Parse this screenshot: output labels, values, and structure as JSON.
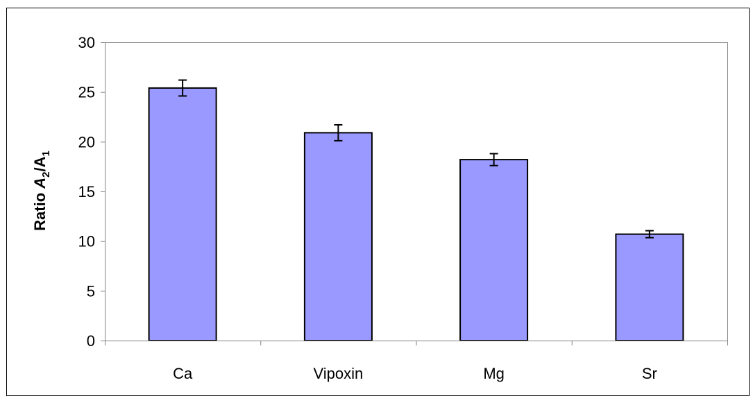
{
  "chart_data": {
    "type": "bar",
    "title": "",
    "xlabel": "",
    "ylabel": {
      "text": "Ratio A2/A1",
      "prefix": "Ratio ",
      "var1": "A",
      "sub1": "2",
      "slash": "/",
      "var2": "A",
      "sub2": "1"
    },
    "categories": [
      "Ca",
      "Vipoxin",
      "Mg",
      "Sr"
    ],
    "values": [
      25.4,
      20.9,
      18.2,
      10.7
    ],
    "errors": [
      0.8,
      0.8,
      0.6,
      0.35
    ],
    "ylim": [
      0,
      30
    ],
    "yticks": [
      0,
      5,
      10,
      15,
      20,
      25,
      30
    ],
    "grid": false,
    "legend": "none",
    "colors": {
      "bar_fill": "#9999ff",
      "bar_stroke": "#000000",
      "axis": "#808080",
      "plot_border": "#808080",
      "frame": "#000000"
    }
  }
}
